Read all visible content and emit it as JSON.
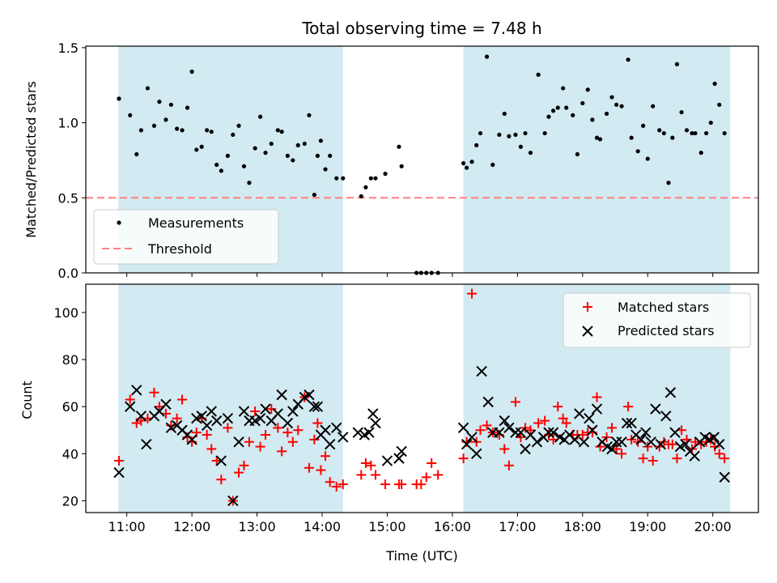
{
  "chart_data": [
    {
      "type": "scatter",
      "panel": "top",
      "title": "Total observing time = 7.48 h",
      "xlabel": "",
      "ylabel": "Matched/Predicted stars",
      "xlim": [
        10.37,
        20.7
      ],
      "ylim": [
        0,
        1.51
      ],
      "yticks": [
        0.0,
        0.5,
        1.0,
        1.5
      ],
      "ytick_labels": [
        "0.0",
        "0.5",
        "1.0",
        "1.5"
      ],
      "xticks": [
        11,
        12,
        13,
        14,
        15,
        16,
        17,
        18,
        19,
        20
      ],
      "shaded_intervals": [
        [
          10.87,
          14.32
        ],
        [
          16.17,
          20.27
        ]
      ],
      "shade_color": "#add8e6",
      "threshold": 0.5,
      "legend": {
        "placement": "lower left",
        "entries": [
          "Measurements",
          "Threshold"
        ]
      },
      "series": [
        {
          "name": "Measurements",
          "marker": "dot",
          "color": "#000000",
          "x": [
            10.88,
            11.05,
            11.15,
            11.22,
            11.32,
            11.42,
            11.5,
            11.6,
            11.68,
            11.77,
            11.85,
            11.93,
            12.0,
            12.07,
            12.15,
            12.23,
            12.3,
            12.38,
            12.45,
            12.55,
            12.63,
            12.72,
            12.8,
            12.88,
            12.97,
            13.05,
            13.13,
            13.22,
            13.32,
            13.38,
            13.47,
            13.55,
            13.63,
            13.73,
            13.8,
            13.88,
            13.93,
            13.98,
            14.05,
            14.12,
            14.22,
            14.32,
            14.6,
            14.67,
            14.75,
            14.82,
            14.97,
            15.18,
            15.22,
            15.45,
            15.52,
            15.6,
            15.68,
            15.78,
            16.17,
            16.22,
            16.3,
            16.37,
            16.43,
            16.53,
            16.62,
            16.72,
            16.8,
            16.87,
            16.97,
            17.05,
            17.12,
            17.2,
            17.32,
            17.42,
            17.48,
            17.55,
            17.62,
            17.7,
            17.75,
            17.85,
            17.92,
            18.0,
            18.08,
            18.15,
            18.22,
            18.27,
            18.37,
            18.45,
            18.52,
            18.6,
            18.7,
            18.75,
            18.85,
            18.93,
            19.0,
            19.08,
            19.18,
            19.25,
            19.32,
            19.38,
            19.45,
            19.52,
            19.6,
            19.68,
            19.73,
            19.82,
            19.9,
            19.97,
            20.03,
            20.1,
            20.18
          ],
          "y": [
            1.16,
            1.05,
            0.79,
            0.95,
            1.23,
            0.98,
            1.14,
            1.02,
            1.12,
            0.96,
            0.95,
            1.1,
            1.34,
            0.82,
            0.84,
            0.95,
            0.94,
            0.72,
            0.68,
            0.78,
            0.92,
            0.98,
            0.71,
            0.6,
            0.83,
            1.04,
            0.8,
            0.86,
            0.95,
            0.94,
            0.78,
            0.75,
            0.85,
            0.86,
            1.05,
            0.52,
            0.78,
            0.88,
            0.69,
            0.78,
            0.63,
            0.63,
            0.51,
            0.57,
            0.63,
            0.63,
            0.66,
            0.84,
            0.71,
            0.0,
            0.0,
            0.0,
            0.0,
            0.0,
            0.73,
            0.7,
            0.74,
            0.85,
            0.93,
            1.44,
            0.72,
            0.92,
            1.06,
            0.91,
            0.92,
            0.84,
            0.93,
            0.8,
            1.32,
            0.93,
            1.04,
            1.08,
            1.1,
            1.23,
            1.1,
            1.05,
            0.79,
            1.13,
            1.22,
            1.02,
            0.9,
            0.89,
            1.06,
            1.17,
            1.12,
            1.11,
            1.42,
            0.9,
            0.81,
            0.98,
            0.76,
            1.11,
            0.95,
            0.93,
            0.6,
            0.9,
            1.39,
            1.07,
            0.95,
            0.93,
            0.93,
            0.8,
            0.93,
            1.0,
            1.26,
            1.12,
            0.93
          ]
        },
        {
          "name": "Threshold",
          "style": "dashed",
          "color": "#ff7f7f",
          "y": 0.5
        }
      ]
    },
    {
      "type": "scatter",
      "panel": "bottom",
      "title": "",
      "xlabel": "Time (UTC)",
      "ylabel": "Count",
      "xlim": [
        10.37,
        20.7
      ],
      "ylim": [
        15,
        112
      ],
      "yticks": [
        20,
        40,
        60,
        80,
        100
      ],
      "ytick_labels": [
        "20",
        "40",
        "60",
        "80",
        "100"
      ],
      "xticks": [
        11,
        12,
        13,
        14,
        15,
        16,
        17,
        18,
        19,
        20
      ],
      "xtick_labels": [
        "11:00",
        "12:00",
        "13:00",
        "14:00",
        "15:00",
        "16:00",
        "17:00",
        "18:00",
        "19:00",
        "20:00"
      ],
      "shaded_intervals": [
        [
          10.87,
          14.32
        ],
        [
          16.17,
          20.27
        ]
      ],
      "shade_color": "#add8e6",
      "legend": {
        "placement": "upper right",
        "entries": [
          "Matched stars",
          "Predicted stars"
        ]
      },
      "series": [
        {
          "name": "Matched stars",
          "marker": "plus",
          "color": "#ff0000",
          "x": [
            10.88,
            11.05,
            11.15,
            11.22,
            11.32,
            11.42,
            11.5,
            11.6,
            11.68,
            11.77,
            11.85,
            11.93,
            12.0,
            12.07,
            12.15,
            12.23,
            12.3,
            12.38,
            12.45,
            12.55,
            12.63,
            12.72,
            12.8,
            12.88,
            12.97,
            13.05,
            13.13,
            13.22,
            13.32,
            13.38,
            13.47,
            13.55,
            13.63,
            13.73,
            13.8,
            13.88,
            13.93,
            13.98,
            14.05,
            14.12,
            14.22,
            14.32,
            14.6,
            14.67,
            14.75,
            14.82,
            14.97,
            15.18,
            15.22,
            15.45,
            15.52,
            15.6,
            15.68,
            15.78,
            16.17,
            16.22,
            16.3,
            16.37,
            16.43,
            16.53,
            16.62,
            16.72,
            16.8,
            16.87,
            16.97,
            17.05,
            17.12,
            17.2,
            17.32,
            17.42,
            17.48,
            17.55,
            17.62,
            17.7,
            17.75,
            17.85,
            17.92,
            18.0,
            18.08,
            18.15,
            18.22,
            18.27,
            18.37,
            18.45,
            18.52,
            18.6,
            18.7,
            18.75,
            18.85,
            18.93,
            19.0,
            19.08,
            19.18,
            19.25,
            19.32,
            19.38,
            19.45,
            19.52,
            19.6,
            19.68,
            19.73,
            19.82,
            19.9,
            19.97,
            20.03,
            20.1,
            20.18
          ],
          "y": [
            37,
            63,
            53,
            54,
            55,
            66,
            60,
            57,
            52,
            55,
            63,
            47,
            45,
            49,
            55,
            48,
            42,
            37,
            29,
            51,
            20,
            32,
            35,
            45,
            58,
            43,
            48,
            59,
            51,
            41,
            49,
            45,
            50,
            64,
            34,
            46,
            53,
            33,
            39,
            28,
            26,
            27,
            31,
            36,
            35,
            31,
            27,
            27,
            27,
            27,
            27,
            30,
            36,
            31,
            38,
            45,
            108,
            45,
            50,
            52,
            49,
            48,
            42,
            35,
            62,
            47,
            51,
            50,
            53,
            54,
            48,
            46,
            60,
            55,
            53,
            48,
            48,
            48,
            49,
            49,
            64,
            43,
            47,
            51,
            42,
            40,
            60,
            46,
            45,
            38,
            43,
            37,
            43,
            45,
            44,
            44,
            38,
            50,
            46,
            42,
            45,
            44,
            45,
            46,
            43,
            40,
            38
          ]
        },
        {
          "name": "Predicted stars",
          "marker": "x",
          "color": "#000000",
          "x": [
            10.88,
            11.05,
            11.15,
            11.22,
            11.3,
            11.42,
            11.5,
            11.6,
            11.68,
            11.77,
            11.85,
            11.93,
            12.0,
            12.07,
            12.15,
            12.23,
            12.3,
            12.38,
            12.45,
            12.55,
            12.63,
            12.72,
            12.8,
            12.88,
            12.97,
            13.05,
            13.13,
            13.22,
            13.32,
            13.38,
            13.47,
            13.55,
            13.63,
            13.73,
            13.8,
            13.88,
            13.93,
            13.98,
            14.05,
            14.12,
            14.22,
            14.32,
            14.55,
            14.65,
            14.72,
            14.78,
            14.82,
            15.0,
            15.18,
            15.22,
            16.17,
            16.22,
            16.3,
            16.37,
            16.45,
            16.55,
            16.62,
            16.72,
            16.8,
            16.87,
            16.97,
            17.05,
            17.12,
            17.2,
            17.3,
            17.4,
            17.48,
            17.55,
            17.65,
            17.72,
            17.8,
            17.88,
            17.95,
            18.02,
            18.1,
            18.15,
            18.22,
            18.3,
            18.38,
            18.45,
            18.52,
            18.6,
            18.68,
            18.75,
            18.82,
            18.9,
            18.97,
            19.05,
            19.12,
            19.2,
            19.28,
            19.35,
            19.42,
            19.5,
            19.58,
            19.65,
            19.72,
            19.8,
            19.88,
            19.95,
            20.02,
            20.1,
            20.18
          ],
          "y": [
            32,
            60,
            67,
            56,
            44,
            56,
            58,
            61,
            51,
            52,
            50,
            48,
            46,
            55,
            56,
            52,
            58,
            54,
            37,
            55,
            20,
            45,
            58,
            54,
            54,
            55,
            59,
            54,
            57,
            65,
            53,
            58,
            61,
            64,
            65,
            60,
            60,
            48,
            50,
            44,
            51,
            47,
            49,
            48,
            49,
            57,
            53,
            37,
            38,
            41,
            51,
            44,
            47,
            40,
            75,
            62,
            49,
            49,
            54,
            51,
            49,
            49,
            42,
            48,
            45,
            47,
            49,
            49,
            47,
            46,
            48,
            46,
            57,
            45,
            55,
            50,
            59,
            45,
            43,
            42,
            45,
            45,
            53,
            53,
            48,
            46,
            49,
            45,
            59,
            44,
            56,
            66,
            49,
            43,
            44,
            41,
            39,
            45,
            47,
            46,
            47,
            44,
            30
          ]
        }
      ]
    }
  ]
}
